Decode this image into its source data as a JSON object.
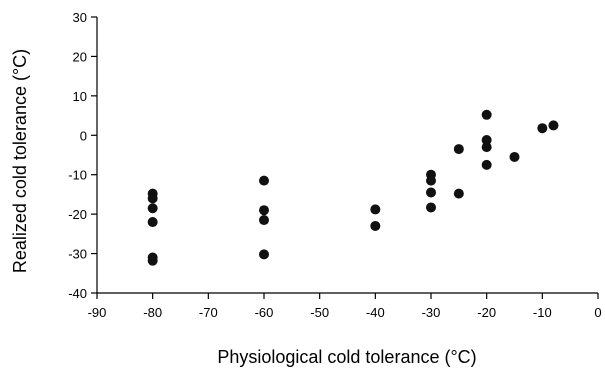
{
  "chart_data": {
    "type": "scatter",
    "xlabel": "Physiological cold tolerance (°C)",
    "ylabel": "Realized cold tolerance (°C)",
    "xlim": [
      -90,
      0
    ],
    "ylim": [
      -40,
      30
    ],
    "xticks": [
      -90,
      -80,
      -70,
      -60,
      -50,
      -40,
      -30,
      -20,
      -10,
      0
    ],
    "yticks": [
      -40,
      -30,
      -20,
      -10,
      0,
      10,
      20,
      30
    ],
    "grid": false,
    "legend": "none",
    "marker_color": "#111111",
    "series": [
      {
        "points": [
          {
            "x": -80,
            "y": -14.8
          },
          {
            "x": -80,
            "y": -16.0
          },
          {
            "x": -80,
            "y": -18.5
          },
          {
            "x": -80,
            "y": -22.0
          },
          {
            "x": -80,
            "y": -31.0
          },
          {
            "x": -80,
            "y": -31.8
          },
          {
            "x": -60,
            "y": -11.5
          },
          {
            "x": -60,
            "y": -19.0
          },
          {
            "x": -60,
            "y": -21.5
          },
          {
            "x": -60,
            "y": -30.2
          },
          {
            "x": -40,
            "y": -18.8
          },
          {
            "x": -40,
            "y": -23.0
          },
          {
            "x": -30,
            "y": -10.0
          },
          {
            "x": -30,
            "y": -11.5
          },
          {
            "x": -30,
            "y": -14.5
          },
          {
            "x": -30,
            "y": -18.3
          },
          {
            "x": -25,
            "y": -3.5
          },
          {
            "x": -25,
            "y": -14.8
          },
          {
            "x": -20,
            "y": 5.2
          },
          {
            "x": -20,
            "y": -1.2
          },
          {
            "x": -20,
            "y": -3.0
          },
          {
            "x": -20,
            "y": -7.5
          },
          {
            "x": -15,
            "y": -5.5
          },
          {
            "x": -10,
            "y": 1.8
          },
          {
            "x": -8,
            "y": 2.5
          }
        ]
      }
    ]
  }
}
